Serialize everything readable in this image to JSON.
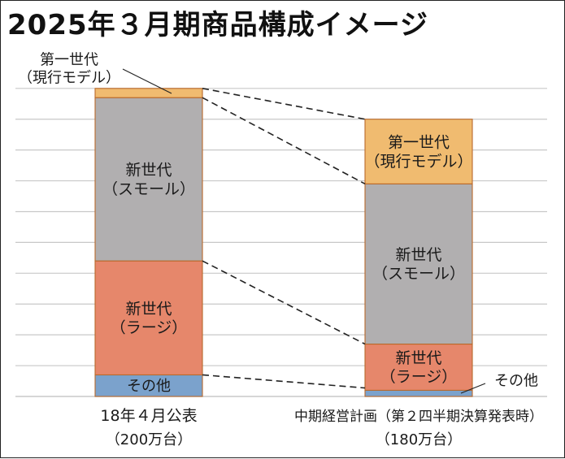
{
  "title": "2025年３月期商品構成イメージ",
  "colors": {
    "first_gen": "#f0bb70",
    "new_small": "#b1afb0",
    "new_large": "#e6876b",
    "other": "#7ba2cc",
    "grid": "#c8c8c8"
  },
  "chart_data": {
    "type": "bar",
    "stacked": true,
    "title": "2025年３月期商品構成イメージ",
    "categories": [
      "18年４月公表",
      "中期経営計画（第２四半期決算発表時）"
    ],
    "category_totals": [
      "（200万台）",
      "（180万台）"
    ],
    "ylim": [
      0,
      200
    ],
    "grid": true,
    "units": "万台",
    "series": [
      {
        "key": "other",
        "name": "その他",
        "label": [
          "その他"
        ],
        "values": [
          14,
          4
        ],
        "color": "#7ba2cc"
      },
      {
        "key": "new_large",
        "name": "新世代（ラージ）",
        "label": [
          "新世代",
          "（ラージ）"
        ],
        "values": [
          74,
          30
        ],
        "color": "#e6876b"
      },
      {
        "key": "new_small",
        "name": "新世代（スモール）",
        "label": [
          "新世代",
          "（スモール）"
        ],
        "values": [
          106,
          104
        ],
        "color": "#b1afb0"
      },
      {
        "key": "first_gen",
        "name": "第一世代（現行モデル）",
        "label": [
          "第一世代",
          "（現行モデル）"
        ],
        "values": [
          6,
          42
        ],
        "color": "#f0bb70"
      }
    ]
  }
}
